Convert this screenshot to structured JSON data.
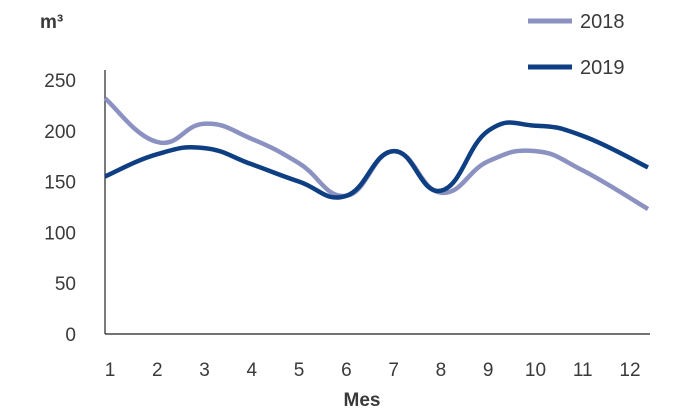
{
  "chart_data": {
    "type": "line",
    "ylabel": "m³",
    "xlabel": "Mes",
    "categories": [
      "1",
      "2",
      "3",
      "4",
      "5",
      "6",
      "7",
      "8",
      "9",
      "10",
      "11",
      "12"
    ],
    "ylim": [
      0,
      250
    ],
    "yticks": [
      "0",
      "50",
      "100",
      "150",
      "200",
      "250"
    ],
    "grid": false,
    "legend_position": "top-right",
    "series": [
      {
        "name": "2018",
        "color": "#8b92c1",
        "values": [
          232,
          189,
          207,
          192,
          168,
          136,
          180,
          139,
          170,
          180,
          161,
          123
        ]
      },
      {
        "name": "2019",
        "color": "#0e3f83",
        "values": [
          155,
          177,
          183,
          167,
          150,
          136,
          180,
          141,
          200,
          205,
          195,
          164
        ]
      }
    ]
  }
}
